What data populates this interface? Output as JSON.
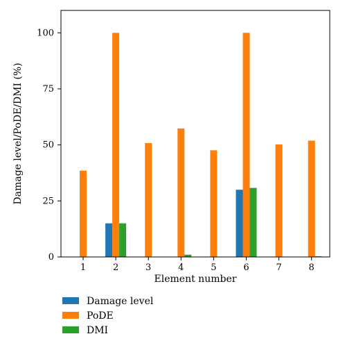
{
  "chart_data": {
    "type": "bar",
    "categories": [
      "1",
      "2",
      "3",
      "4",
      "5",
      "6",
      "7",
      "8"
    ],
    "series": [
      {
        "name": "Damage level",
        "color": "#1f77b4",
        "values": [
          0,
          15,
          0,
          0,
          0,
          30,
          0,
          0
        ]
      },
      {
        "name": "PoDE",
        "color": "#ff7f0e",
        "values": [
          38.5,
          100,
          50.8,
          57.3,
          47.6,
          100,
          50.2,
          51.9
        ]
      },
      {
        "name": "DMI",
        "color": "#2ca02c",
        "values": [
          0,
          15,
          0,
          1,
          0,
          30.8,
          0,
          0.3
        ]
      }
    ],
    "title": "",
    "xlabel": "Element number",
    "ylabel": "Damage level/PoDE/DMI (%)",
    "ylim": [
      0,
      110
    ],
    "yticks": [
      0,
      25,
      50,
      75,
      100
    ],
    "grid": false,
    "legend_position": "bottom-left"
  }
}
